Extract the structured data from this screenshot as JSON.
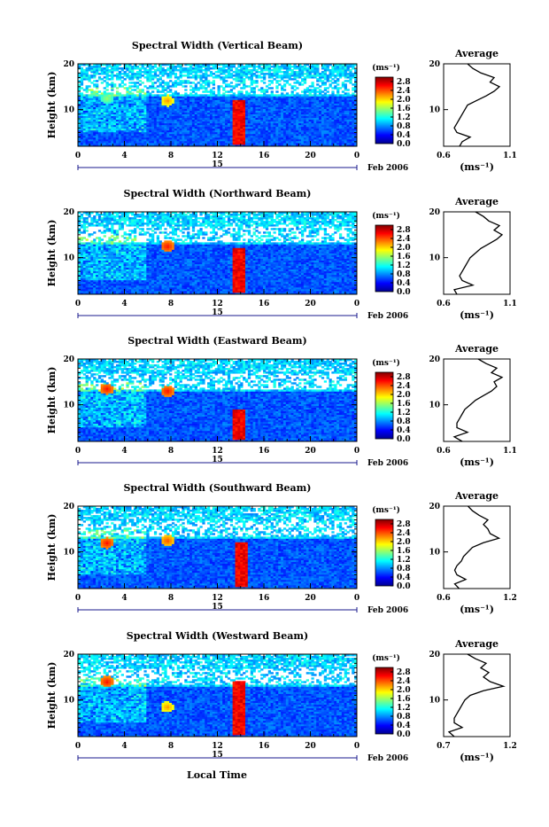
{
  "figure": {
    "xlabel": "Local Time",
    "date_label": "15",
    "month_label": "Feb 2006",
    "ylabel": "Height (km)",
    "colorbar_unit": "(ms⁻¹)",
    "average_title": "Average",
    "average_unit": "(ms⁻¹)"
  },
  "chart_data": [
    {
      "type": "heatmap",
      "title": "Spectral Width (Vertical Beam)",
      "xlabel": "Local Time",
      "ylabel": "Height (km)",
      "xlim": [
        0,
        24
      ],
      "ylim": [
        2,
        20
      ],
      "xticks": [
        "0",
        "4",
        "8",
        "12",
        "16",
        "20",
        "0"
      ],
      "yticks": [
        "10",
        "20"
      ],
      "colorbar": {
        "ticks": [
          "0.0",
          "0.4",
          "0.8",
          "1.2",
          "1.6",
          "2.0",
          "2.4",
          "2.8"
        ],
        "range": [
          0,
          3.0
        ]
      },
      "features": [
        {
          "time": 13.8,
          "height_from": 2.2,
          "height_to": 12.0,
          "value": 2.8
        },
        {
          "time": 2.5,
          "height": 12.5,
          "value": 1.6
        },
        {
          "time": 7.7,
          "height": 12.0,
          "value": 2.2
        }
      ],
      "average": {
        "xlim": [
          0.6,
          1.1
        ],
        "xticks": [
          "0.6",
          "1.1"
        ],
        "yticks": [
          "10",
          "20"
        ],
        "height": [
          2,
          3,
          4,
          5,
          6,
          7,
          8,
          9,
          10,
          11,
          12,
          13,
          14,
          15,
          16,
          17,
          18,
          19,
          20
        ],
        "value": [
          0.72,
          0.74,
          0.8,
          0.7,
          0.68,
          0.7,
          0.72,
          0.74,
          0.76,
          0.78,
          0.85,
          0.92,
          0.98,
          1.02,
          0.95,
          0.98,
          0.88,
          0.82,
          0.78
        ]
      }
    },
    {
      "type": "heatmap",
      "title": "Spectral Width (Northward Beam)",
      "xlabel": "Local Time",
      "ylabel": "Height (km)",
      "xlim": [
        0,
        24
      ],
      "ylim": [
        2,
        20
      ],
      "xticks": [
        "0",
        "4",
        "8",
        "12",
        "16",
        "20",
        "0"
      ],
      "yticks": [
        "10",
        "20"
      ],
      "colorbar": {
        "ticks": [
          "0.0",
          "0.4",
          "0.8",
          "1.2",
          "1.6",
          "2.0",
          "2.4",
          "2.8"
        ],
        "range": [
          0,
          3.0
        ]
      },
      "features": [
        {
          "time": 13.8,
          "height_from": 2.2,
          "height_to": 12.0,
          "value": 2.8
        },
        {
          "time": 7.7,
          "height": 12.5,
          "value": 2.6
        }
      ],
      "average": {
        "xlim": [
          0.6,
          1.1
        ],
        "xticks": [
          "0.6",
          "1.1"
        ],
        "yticks": [
          "10",
          "20"
        ],
        "height": [
          2,
          3,
          4,
          5,
          6,
          7,
          8,
          9,
          10,
          11,
          12,
          13,
          14,
          15,
          16,
          17,
          18,
          19,
          20
        ],
        "value": [
          0.7,
          0.68,
          0.82,
          0.74,
          0.72,
          0.74,
          0.76,
          0.78,
          0.8,
          0.84,
          0.88,
          0.94,
          1.0,
          1.04,
          0.98,
          1.02,
          0.94,
          0.9,
          0.84
        ]
      }
    },
    {
      "type": "heatmap",
      "title": "Spectral Width (Eastward Beam)",
      "xlabel": "Local Time",
      "ylabel": "Height (km)",
      "xlim": [
        0,
        24
      ],
      "ylim": [
        2,
        20
      ],
      "xticks": [
        "0",
        "4",
        "8",
        "12",
        "16",
        "20",
        "0"
      ],
      "yticks": [
        "10",
        "20"
      ],
      "colorbar": {
        "ticks": [
          "0.0",
          "0.4",
          "0.8",
          "1.2",
          "1.6",
          "2.0",
          "2.4",
          "2.8"
        ],
        "range": [
          0,
          3.0
        ]
      },
      "features": [
        {
          "time": 13.8,
          "height_from": 2.2,
          "height_to": 9.0,
          "value": 2.8
        },
        {
          "time": 2.5,
          "height": 13.5,
          "value": 2.6
        },
        {
          "time": 7.7,
          "height": 13.0,
          "value": 2.6
        }
      ],
      "average": {
        "xlim": [
          0.6,
          1.1
        ],
        "xticks": [
          "0.6",
          "1.1"
        ],
        "yticks": [
          "10",
          "20"
        ],
        "height": [
          2,
          3,
          4,
          5,
          6,
          7,
          8,
          9,
          10,
          11,
          12,
          13,
          14,
          15,
          16,
          17,
          18,
          19,
          20
        ],
        "value": [
          0.74,
          0.68,
          0.78,
          0.7,
          0.7,
          0.72,
          0.74,
          0.76,
          0.8,
          0.84,
          0.9,
          0.96,
          1.0,
          0.98,
          1.04,
          0.96,
          1.0,
          0.92,
          0.86
        ]
      }
    },
    {
      "type": "heatmap",
      "title": "Spectral Width (Southward Beam)",
      "xlabel": "Local Time",
      "ylabel": "Height (km)",
      "xlim": [
        0,
        24
      ],
      "ylim": [
        2,
        20
      ],
      "xticks": [
        "0",
        "4",
        "8",
        "12",
        "16",
        "20",
        "0"
      ],
      "yticks": [
        "10",
        "20"
      ],
      "colorbar": {
        "ticks": [
          "0.0",
          "0.4",
          "0.8",
          "1.2",
          "1.6",
          "2.0",
          "2.4",
          "2.8"
        ],
        "range": [
          0,
          3.0
        ]
      },
      "features": [
        {
          "time": 14.0,
          "height_from": 2.2,
          "height_to": 12.0,
          "value": 2.8
        },
        {
          "time": 2.5,
          "height": 12.0,
          "value": 2.6
        },
        {
          "time": 7.7,
          "height": 12.5,
          "value": 2.4
        }
      ],
      "average": {
        "xlim": [
          0.6,
          1.2
        ],
        "xticks": [
          "0.6",
          "1.2"
        ],
        "yticks": [
          "10",
          "20"
        ],
        "height": [
          2,
          3,
          4,
          5,
          6,
          7,
          8,
          9,
          10,
          11,
          12,
          13,
          14,
          15,
          16,
          17,
          18,
          19,
          20
        ],
        "value": [
          0.74,
          0.7,
          0.8,
          0.72,
          0.7,
          0.72,
          0.76,
          0.78,
          0.82,
          0.86,
          0.96,
          1.1,
          1.02,
          1.0,
          0.96,
          1.0,
          0.92,
          0.86,
          0.82
        ]
      }
    },
    {
      "type": "heatmap",
      "title": "Spectral Width (Westward Beam)",
      "xlabel": "Local Time",
      "ylabel": "Height (km)",
      "xlim": [
        0,
        24
      ],
      "ylim": [
        2,
        20
      ],
      "xticks": [
        "0",
        "4",
        "8",
        "12",
        "16",
        "20",
        "0"
      ],
      "yticks": [
        "10",
        "20"
      ],
      "colorbar": {
        "ticks": [
          "0.0",
          "0.4",
          "0.8",
          "1.2",
          "1.6",
          "2.0",
          "2.4",
          "2.8"
        ],
        "range": [
          0,
          3.0
        ]
      },
      "features": [
        {
          "time": 13.8,
          "height_from": 2.2,
          "height_to": 14.0,
          "value": 2.8
        },
        {
          "time": 2.5,
          "height": 14.0,
          "value": 2.6
        },
        {
          "time": 7.7,
          "height": 8.5,
          "value": 2.2
        }
      ],
      "average": {
        "xlim": [
          0.7,
          1.2
        ],
        "xticks": [
          "0.7",
          "1.2"
        ],
        "yticks": [
          "10",
          "20"
        ],
        "height": [
          2,
          3,
          4,
          5,
          6,
          7,
          8,
          9,
          10,
          11,
          12,
          13,
          14,
          15,
          16,
          17,
          18,
          19,
          20
        ],
        "value": [
          0.78,
          0.74,
          0.84,
          0.78,
          0.78,
          0.8,
          0.82,
          0.84,
          0.86,
          0.9,
          1.0,
          1.15,
          1.05,
          1.0,
          1.04,
          0.98,
          1.02,
          0.94,
          0.88
        ]
      }
    }
  ]
}
